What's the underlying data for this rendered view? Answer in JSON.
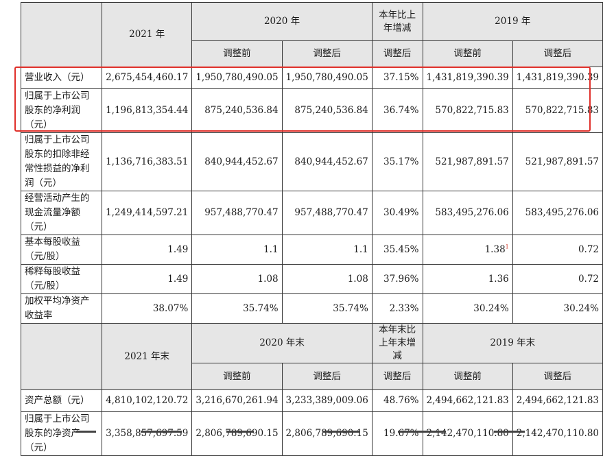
{
  "header1": {
    "y2021": "2021 年",
    "y2020": "2020 年",
    "change": "本年比上年增减",
    "y2019": "2019 年",
    "before": "调整前",
    "after": "调整后",
    "change_after": "调整后"
  },
  "rows1": [
    {
      "label": "营业收入（元）",
      "v2021": "2,675,454,460.17",
      "v2020b": "1,950,780,490.05",
      "v2020a": "1,950,780,490.05",
      "chg": "37.15%",
      "v2019b": "1,431,819,390.39",
      "v2019a": "1,431,819,390.39"
    },
    {
      "label": "归属于上市公司股东的净利润（元）",
      "v2021": "1,196,813,354.44",
      "v2020b": "875,240,536.84",
      "v2020a": "875,240,536.84",
      "chg": "36.74%",
      "v2019b": "570,822,715.83",
      "v2019a": "570,822,715.83"
    },
    {
      "label": "归属于上市公司股东的扣除非经常性损益的净利润（元）",
      "v2021": "1,136,716,383.51",
      "v2020b": "840,944,452.67",
      "v2020a": "840,944,452.67",
      "chg": "35.17%",
      "v2019b": "521,987,891.57",
      "v2019a": "521,987,891.57"
    },
    {
      "label": "经营活动产生的现金流量净额（元）",
      "v2021": "1,249,414,597.21",
      "v2020b": "957,488,770.47",
      "v2020a": "957,488,770.47",
      "chg": "30.49%",
      "v2019b": "583,495,276.06",
      "v2019a": "583,495,276.06"
    },
    {
      "label": "基本每股收益（元/股）",
      "v2021": "1.49",
      "v2020b": "1.1",
      "v2020a": "1.1",
      "chg": "35.45%",
      "v2019b": "1.38",
      "v2019b_mark": "1",
      "v2019a": "0.72"
    },
    {
      "label": "稀释每股收益（元/股）",
      "v2021": "1.49",
      "v2020b": "1.08",
      "v2020a": "1.08",
      "chg": "37.96%",
      "v2019b": "1.36",
      "v2019a": "0.72"
    },
    {
      "label": "加权平均净资产收益率",
      "v2021": "38.07%",
      "v2020b": "35.74%",
      "v2020a": "35.74%",
      "chg": "2.33%",
      "v2019b": "30.24%",
      "v2019a": "30.24%"
    }
  ],
  "header2": {
    "y2021": "2021 年末",
    "y2020": "2020 年末",
    "change": "本年末比上年末增减",
    "y2019": "2019 年末",
    "before": "调整前",
    "after": "调整后",
    "change_after": "调整后"
  },
  "rows2": [
    {
      "label": "资产总额（元）",
      "v2021": "4,810,102,120.72",
      "v2020b": "3,216,670,261.94",
      "v2020a": "3,233,389,009.06",
      "chg": "48.76%",
      "v2019b": "2,494,662,121.83",
      "v2019a": "2,494,662,121.83"
    },
    {
      "label": "归属于上市公司股东的净资产（元）",
      "v2021": "3,358,857,697.59",
      "v2020b": "2,806,789,690.15",
      "v2020a": "2,806,789,690.15",
      "chg": "19.67%",
      "v2019b": "2,142,470,110.80",
      "v2019a": "2,142,470,110.80"
    }
  ],
  "colors": {
    "highlight": "#e0302a",
    "header_bg": "#e6e6e6"
  }
}
